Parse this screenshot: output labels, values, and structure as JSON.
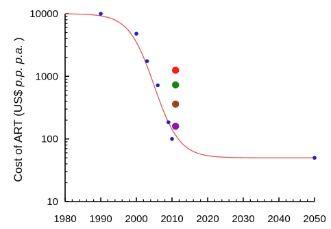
{
  "chart_data": {
    "type": "scatter",
    "title": "",
    "xlabel": "",
    "ylabel": {
      "prefix": "Cost of ART (US$ ",
      "italic": "p.p. p.a.",
      "suffix": " )"
    },
    "x_scale": "linear",
    "y_scale": "log",
    "xlim": [
      1980,
      2050
    ],
    "ylim": [
      10,
      10000
    ],
    "x_ticks": [
      1980,
      1990,
      2000,
      2010,
      2020,
      2030,
      2040,
      2050
    ],
    "y_ticks": [
      10,
      100,
      1000,
      10000
    ],
    "x_tick_labels": [
      "1980",
      "1990",
      "2000",
      "2010",
      "2020",
      "2030",
      "2040",
      "2050"
    ],
    "y_tick_labels": [
      "10",
      "100",
      "1000",
      "10000"
    ],
    "grid": false,
    "series": [
      {
        "kind": "points",
        "color": "#1f1fc8",
        "points": [
          {
            "x": 1990,
            "y": 10000
          },
          {
            "x": 2000,
            "y": 4800
          },
          {
            "x": 2003,
            "y": 1750
          },
          {
            "x": 2006,
            "y": 720
          },
          {
            "x": 2009,
            "y": 185
          },
          {
            "x": 2010,
            "y": 100
          },
          {
            "x": 2050,
            "y": 50
          }
        ]
      },
      {
        "kind": "fit-curve",
        "color": "#e05555",
        "upper": 10000,
        "lower": 50,
        "midpoint": 2005,
        "steepness": 0.28
      },
      {
        "kind": "highlight-points",
        "points": [
          {
            "x": 2011,
            "y": 1250,
            "color": "#ff1a1a"
          },
          {
            "x": 2011,
            "y": 730,
            "color": "#118811"
          },
          {
            "x": 2011,
            "y": 360,
            "color": "#a0421a"
          },
          {
            "x": 2011,
            "y": 160,
            "color": "#8a1aa0"
          }
        ]
      }
    ]
  }
}
